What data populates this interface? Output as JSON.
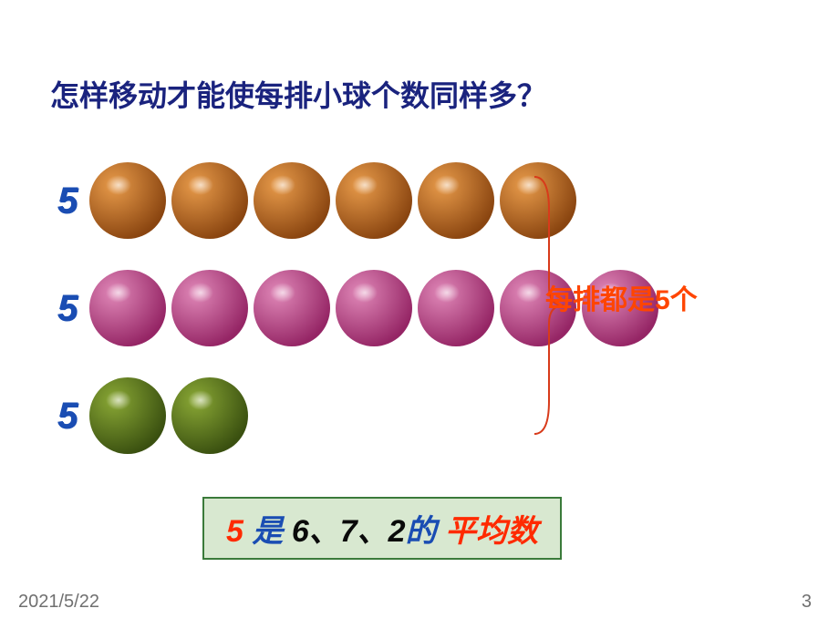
{
  "title": {
    "text": "怎样移动才能使每排小球个数同样多？",
    "color": "#1a237e"
  },
  "rows": [
    {
      "label": "5",
      "label_color": "#1a4db3",
      "count": 6,
      "ball_gradient_light": "#e89b4a",
      "ball_gradient_dark": "#8a4510"
    },
    {
      "label": "5",
      "label_color": "#1a4db3",
      "count": 7,
      "ball_gradient_light": "#e088b8",
      "ball_gradient_dark": "#952565"
    },
    {
      "label": "5",
      "label_color": "#1a4db3",
      "count": 2,
      "ball_gradient_light": "#8aa835",
      "ball_gradient_dark": "#3a5010"
    }
  ],
  "brace": {
    "stroke": "#d83a1a",
    "width": 2
  },
  "result": {
    "prefix": "每排都是",
    "number": "5",
    "suffix": "个",
    "color": "#ff4500"
  },
  "summary": {
    "parts": [
      {
        "text": "5 ",
        "color": "#ff2a00"
      },
      {
        "text": "是 ",
        "color": "#1a4db3"
      },
      {
        "text": "6、7、2",
        "color": "#0a0a0a"
      },
      {
        "text": "的 ",
        "color": "#1a4db3"
      },
      {
        "text": "平均数",
        "color": "#ff2a00"
      }
    ],
    "bg": "#d8e8d0",
    "border": "#3a7a3a"
  },
  "footer": {
    "date": "2021/5/22",
    "page": "3",
    "color": "#707070"
  }
}
